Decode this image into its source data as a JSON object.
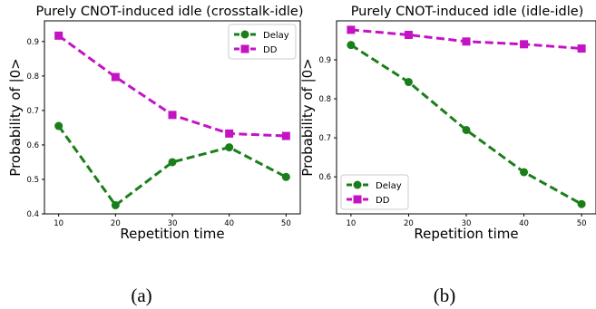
{
  "chart_data": [
    {
      "type": "line",
      "title": "Purely CNOT-induced idle (crosstalk-idle)",
      "xlabel": "Repetition time",
      "ylabel": "Probability of |0>",
      "x": [
        10,
        20,
        30,
        40,
        50
      ],
      "xticks": [
        "10",
        "20",
        "30",
        "40",
        "50"
      ],
      "yticks": [
        "0.4",
        "0.5",
        "0.6",
        "0.7",
        "0.8",
        "0.9"
      ],
      "ylim": [
        0.4,
        0.96
      ],
      "xlim": [
        7.5,
        52.5
      ],
      "grid": false,
      "legend_position": "top-right",
      "caption": "(a)",
      "series": [
        {
          "name": "Delay",
          "values": [
            0.655,
            0.425,
            0.55,
            0.593,
            0.507
          ],
          "color": "#1a7f1a",
          "marker": "circle"
        },
        {
          "name": "DD",
          "values": [
            0.917,
            0.797,
            0.687,
            0.633,
            0.626
          ],
          "color": "#c413c4",
          "marker": "square"
        }
      ]
    },
    {
      "type": "line",
      "title": "Purely CNOT-induced idle (idle-idle)",
      "xlabel": "Repetition time",
      "ylabel": "Probability of |0>",
      "x": [
        10,
        20,
        30,
        40,
        50
      ],
      "xticks": [
        "10",
        "20",
        "30",
        "40",
        "50"
      ],
      "yticks": [
        "0.6",
        "0.7",
        "0.8",
        "0.9"
      ],
      "ylim": [
        0.505,
        1.0
      ],
      "xlim": [
        7.5,
        52.5
      ],
      "grid": false,
      "legend_position": "bottom-left",
      "caption": "(b)",
      "series": [
        {
          "name": "Delay",
          "values": [
            0.938,
            0.843,
            0.72,
            0.612,
            0.53
          ],
          "color": "#1a7f1a",
          "marker": "circle"
        },
        {
          "name": "DD",
          "values": [
            0.977,
            0.964,
            0.947,
            0.94,
            0.929
          ],
          "color": "#c413c4",
          "marker": "square"
        }
      ]
    }
  ]
}
